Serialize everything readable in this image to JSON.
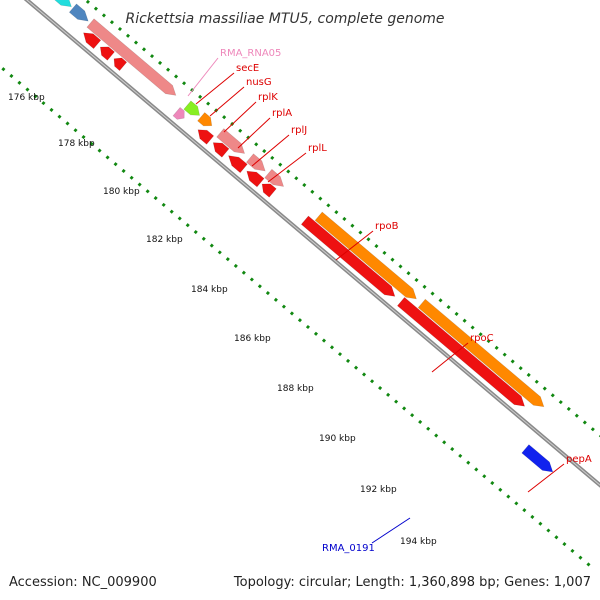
{
  "title": "Rickettsia massiliae MTU5, complete genome",
  "accession_text": "Accession: NC_009900",
  "topology_text": "Topology: circular; Length: 1,360,898 bp; Genes: 1,007",
  "colors": {
    "backbone": "#8a8a8a",
    "tick_green": "#118811",
    "cds_red": "#ee1111",
    "cds_pink": "#ee8888",
    "cds_orange": "#ff8800",
    "cds_steelblue": "#4f86bf",
    "cds_cyan": "#22dddd",
    "cds_lime": "#88ee22",
    "cds_yellow": "#eeee99",
    "cds_blue": "#1122ee",
    "rna_pink": "#ee88bb",
    "label_red": "#dd0000",
    "label_blue": "#0000cc",
    "label_pink": "#ee88bb"
  },
  "kbp_ticks": [
    "176 kbp",
    "178 kbp",
    "180 kbp",
    "182 kbp",
    "184 kbp",
    "186 kbp",
    "188 kbp",
    "190 kbp",
    "192 kbp",
    "194 kbp"
  ],
  "gene_labels": [
    {
      "text": "RMA_RNA05",
      "color": "label_pink"
    },
    {
      "text": "secE",
      "color": "label_red"
    },
    {
      "text": "nusG",
      "color": "label_red"
    },
    {
      "text": "rplK",
      "color": "label_red"
    },
    {
      "text": "rplA",
      "color": "label_red"
    },
    {
      "text": "rplJ",
      "color": "label_red"
    },
    {
      "text": "rplL",
      "color": "label_red"
    },
    {
      "text": "rpoB",
      "color": "label_red"
    },
    {
      "text": "rpoC",
      "color": "label_red"
    },
    {
      "text": "pepA",
      "color": "label_red"
    },
    {
      "text": "RMA_0191",
      "color": "label_blue"
    }
  ]
}
